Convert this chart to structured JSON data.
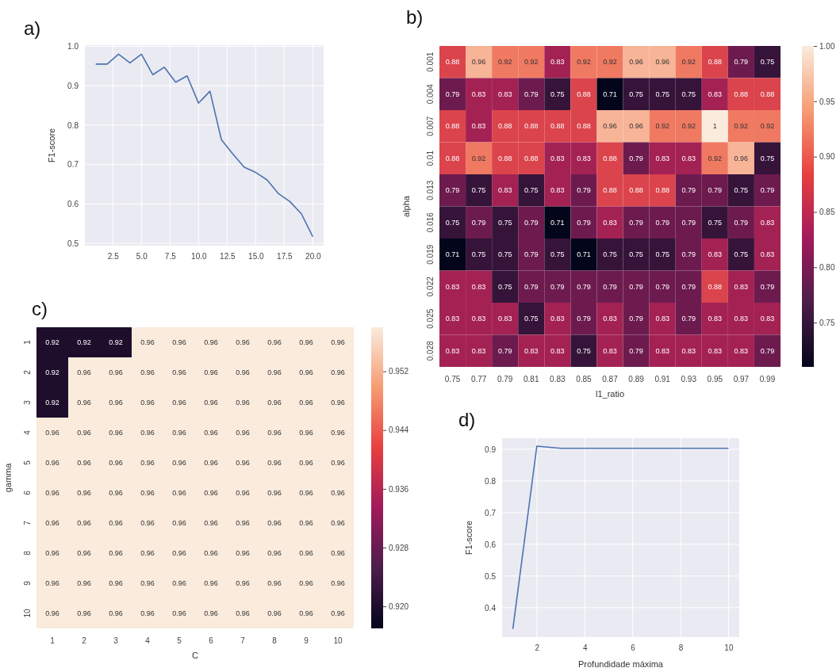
{
  "chart_data": [
    {
      "type": "line",
      "title": "a)",
      "ylabel": "F1-score",
      "x": [
        1,
        2,
        3,
        4,
        5,
        6,
        7,
        8,
        9,
        10,
        11,
        12,
        13,
        14,
        15,
        16,
        17,
        18,
        19,
        20
      ],
      "series": [
        {
          "color": "#4c72b0",
          "values": [
            0.955,
            0.955,
            0.98,
            0.958,
            0.98,
            0.928,
            0.947,
            0.909,
            0.925,
            0.856,
            0.886,
            0.763,
            0.727,
            0.693,
            0.68,
            0.661,
            0.626,
            0.606,
            0.575,
            0.517
          ]
        }
      ],
      "xlim": [
        0.05,
        20.95
      ],
      "xticks": [
        {
          "value": 2.5,
          "label": "2.5"
        },
        {
          "value": 5,
          "label": "5.0"
        },
        {
          "value": 7.5,
          "label": "7.5"
        },
        {
          "value": 10,
          "label": "10.0"
        },
        {
          "value": 12.5,
          "label": "12.5"
        },
        {
          "value": 15,
          "label": "15.0"
        },
        {
          "value": 17.5,
          "label": "17.5"
        },
        {
          "value": 20,
          "label": "20.0"
        }
      ],
      "ylim": [
        0.494,
        1.003
      ],
      "yticks": [
        0.5,
        0.6,
        0.7,
        0.8,
        0.9,
        {
          "value": 1,
          "label": "1.0"
        }
      ],
      "grid": true
    },
    {
      "type": "heatmap",
      "title": "b)",
      "xlabel": "l1_ratio",
      "ylabel": "alpha",
      "categories": [
        "0.75",
        "0.77",
        "0.79",
        "0.81",
        "0.83",
        "0.85",
        "0.87",
        "0.89",
        "0.91",
        "0.93",
        "0.95",
        "0.97",
        "0.99"
      ],
      "y_categories": [
        "0.001",
        "0.004",
        "0.007",
        "0.01",
        "0.013",
        "0.016",
        "0.019",
        "0.022",
        "0.025",
        "0.028"
      ],
      "cells": [
        [
          0.88,
          0.96,
          0.92,
          0.92,
          0.83,
          0.92,
          0.92,
          0.96,
          0.96,
          0.92,
          0.88,
          0.79,
          0.75
        ],
        [
          0.79,
          0.83,
          0.83,
          0.79,
          0.75,
          0.88,
          0.71,
          0.75,
          0.75,
          0.75,
          0.83,
          0.88,
          0.88
        ],
        [
          0.88,
          0.83,
          0.88,
          0.88,
          0.88,
          0.88,
          0.96,
          0.96,
          0.92,
          0.92,
          1,
          0.92,
          0.92
        ],
        [
          0.88,
          0.92,
          0.88,
          0.88,
          0.83,
          0.83,
          0.88,
          0.79,
          0.83,
          0.83,
          0.92,
          0.96,
          0.75
        ],
        [
          0.79,
          0.75,
          0.83,
          0.75,
          0.83,
          0.79,
          0.88,
          0.88,
          0.88,
          0.79,
          0.79,
          0.75,
          0.79
        ],
        [
          0.75,
          0.79,
          0.75,
          0.79,
          0.71,
          0.79,
          0.83,
          0.79,
          0.79,
          0.79,
          0.75,
          0.79,
          0.83
        ],
        [
          0.71,
          0.75,
          0.75,
          0.79,
          0.75,
          0.71,
          0.75,
          0.75,
          0.75,
          0.79,
          0.83,
          0.75,
          0.83
        ],
        [
          0.83,
          0.83,
          0.75,
          0.79,
          0.79,
          0.79,
          0.79,
          0.79,
          0.79,
          0.79,
          0.88,
          0.83,
          0.79
        ],
        [
          0.83,
          0.83,
          0.83,
          0.75,
          0.83,
          0.79,
          0.83,
          0.79,
          0.83,
          0.79,
          0.83,
          0.83,
          0.83
        ],
        [
          0.83,
          0.83,
          0.79,
          0.83,
          0.83,
          0.75,
          0.83,
          0.79,
          0.83,
          0.83,
          0.83,
          0.83,
          0.79
        ]
      ],
      "clim": [
        0.71,
        1
      ],
      "cticks": [
        {
          "value": 0.75,
          "label": "0.75"
        },
        {
          "value": 0.8,
          "label": "0.80"
        },
        {
          "value": 0.85,
          "label": "0.85"
        },
        {
          "value": 0.9,
          "label": "0.90"
        },
        {
          "value": 0.95,
          "label": "0.95"
        },
        {
          "value": 1,
          "label": "1.00"
        }
      ],
      "data_labels": true
    },
    {
      "type": "heatmap",
      "title": "c)",
      "xlabel": "C",
      "ylabel": "gamma",
      "categories": [
        "1",
        "2",
        "3",
        "4",
        "5",
        "6",
        "7",
        "8",
        "9",
        "10"
      ],
      "y_categories": [
        "1",
        "2",
        "3",
        "4",
        "5",
        "6",
        "7",
        "8",
        "9",
        "10"
      ],
      "cells": [
        [
          0.92,
          0.92,
          0.92,
          0.96,
          0.96,
          0.96,
          0.96,
          0.96,
          0.96,
          0.96
        ],
        [
          0.92,
          0.96,
          0.96,
          0.96,
          0.96,
          0.96,
          0.96,
          0.96,
          0.96,
          0.96
        ],
        [
          0.92,
          0.96,
          0.96,
          0.96,
          0.96,
          0.96,
          0.96,
          0.96,
          0.96,
          0.96
        ],
        [
          0.96,
          0.96,
          0.96,
          0.96,
          0.96,
          0.96,
          0.96,
          0.96,
          0.96,
          0.96
        ],
        [
          0.96,
          0.96,
          0.96,
          0.96,
          0.96,
          0.96,
          0.96,
          0.96,
          0.96,
          0.96
        ],
        [
          0.96,
          0.96,
          0.96,
          0.96,
          0.96,
          0.96,
          0.96,
          0.96,
          0.96,
          0.96
        ],
        [
          0.96,
          0.96,
          0.96,
          0.96,
          0.96,
          0.96,
          0.96,
          0.96,
          0.96,
          0.96
        ],
        [
          0.96,
          0.96,
          0.96,
          0.96,
          0.96,
          0.96,
          0.96,
          0.96,
          0.96,
          0.96
        ],
        [
          0.96,
          0.96,
          0.96,
          0.96,
          0.96,
          0.96,
          0.96,
          0.96,
          0.96,
          0.96
        ],
        [
          0.96,
          0.96,
          0.96,
          0.96,
          0.96,
          0.96,
          0.96,
          0.96,
          0.96,
          0.96
        ]
      ],
      "clim": [
        0.917,
        0.958
      ],
      "cticks": [
        {
          "value": 0.92,
          "label": "0.920"
        },
        {
          "value": 0.928,
          "label": "0.928"
        },
        {
          "value": 0.936,
          "label": "0.936"
        },
        {
          "value": 0.944,
          "label": "0.944"
        },
        {
          "value": 0.952,
          "label": "0.952"
        }
      ],
      "data_labels": true
    },
    {
      "type": "line",
      "title": "d)",
      "xlabel": "Profundidade máxima",
      "ylabel": "F1-score",
      "x": [
        1,
        2,
        3,
        4,
        5,
        6,
        7,
        8,
        9,
        10
      ],
      "series": [
        {
          "color": "#4c72b0",
          "values": [
            0.333,
            0.91,
            0.903,
            0.903,
            0.903,
            0.903,
            0.903,
            0.903,
            0.903,
            0.903
          ]
        }
      ],
      "xlim": [
        0.55,
        10.45
      ],
      "xticks": [
        2,
        4,
        6,
        8,
        10
      ],
      "ylim": [
        0.307,
        0.935
      ],
      "yticks": [
        0.4,
        0.5,
        0.6,
        0.7,
        0.8,
        0.9
      ],
      "grid": true
    }
  ]
}
